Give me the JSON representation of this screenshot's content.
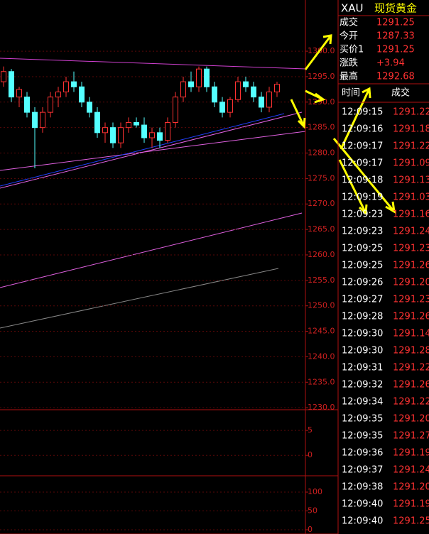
{
  "chart_data": [
    {
      "type": "candlestick",
      "open": [
        1294,
        1296,
        1291,
        1291,
        1288,
        1285,
        1288,
        1291,
        1292,
        1294,
        1293,
        1290,
        1288,
        1284,
        1285,
        1282,
        1285,
        1286,
        1285.5,
        1283,
        1284,
        1282.5,
        1286,
        1291,
        1294,
        1293,
        1296.5,
        1293,
        1290,
        1288,
        1290.5,
        1294,
        1293,
        1291,
        1289,
        1292
      ],
      "high": [
        1297,
        1296.5,
        1293,
        1292,
        1289,
        1289,
        1292,
        1293,
        1295,
        1296,
        1294,
        1291,
        1289,
        1286,
        1286,
        1286,
        1287,
        1287,
        1287,
        1285,
        1285,
        1287,
        1292,
        1295,
        1296,
        1297,
        1297,
        1294,
        1291,
        1291,
        1295,
        1295,
        1294,
        1292,
        1293,
        1294
      ],
      "low": [
        1293,
        1290,
        1289,
        1287,
        1277,
        1284,
        1287,
        1289,
        1291,
        1292,
        1289,
        1287,
        1283,
        1282,
        1281,
        1281,
        1284,
        1285,
        1282,
        1281,
        1281,
        1282,
        1285,
        1290,
        1292,
        1292,
        1292,
        1289,
        1287,
        1287,
        1290,
        1292,
        1290,
        1288,
        1288,
        1291
      ],
      "close": [
        1296,
        1291,
        1292.5,
        1288,
        1285,
        1288,
        1291,
        1292,
        1294,
        1293,
        1290,
        1288,
        1284,
        1285,
        1282,
        1285,
        1286,
        1285.5,
        1283,
        1284,
        1282.5,
        1286,
        1291,
        1294,
        1293,
        1296.5,
        1293,
        1290,
        1288,
        1290.5,
        1294,
        1293,
        1291,
        1289,
        1292,
        1293.5
      ],
      "up_color": "#ff3232",
      "down_color": "#54ffff",
      "ylim": [
        1229.6,
        1310.05
      ],
      "yticks": [
        {
          "value": 1300,
          "label": "1300.0"
        },
        {
          "value": 1295,
          "label": "1295.0"
        },
        {
          "value": 1290,
          "label": "1290.0"
        },
        {
          "value": 1285,
          "label": "1285.0"
        },
        {
          "value": 1280,
          "label": "1280.0"
        },
        {
          "value": 1275,
          "label": "1275.0"
        },
        {
          "value": 1270,
          "label": "1270.0"
        },
        {
          "value": 1265,
          "label": "1265.0"
        },
        {
          "value": 1260,
          "label": "1260.0"
        },
        {
          "value": 1255,
          "label": "1255.0"
        },
        {
          "value": 1250,
          "label": "1250.0"
        },
        {
          "value": 1245,
          "label": "1245.0"
        },
        {
          "value": 1240,
          "label": "1240.0"
        },
        {
          "value": 1235,
          "label": "1235.0"
        },
        {
          "value": 1230,
          "label": "1230.0"
        }
      ],
      "grid": true
    },
    {
      "type": "macd",
      "ylim": [
        -4.1,
        7.3
      ],
      "yticks": [
        5,
        0
      ],
      "grid": true
    },
    {
      "type": "kdj",
      "ylim": [
        -11.3,
        124.5
      ],
      "yticks": [
        100,
        50,
        0
      ],
      "grid": true
    }
  ],
  "header": {
    "symbol": "XAU",
    "name": "现货黄金"
  },
  "quote": [
    [
      "成交",
      "1291.25"
    ],
    [
      "今开",
      "1287.33"
    ],
    [
      "买价1",
      "1291.25"
    ],
    [
      "涨跌",
      "+3.94"
    ],
    [
      "最高",
      "1292.68"
    ]
  ],
  "trades_header": [
    "时间",
    "成交"
  ],
  "trades": [
    [
      "12:09:15",
      "1291.22"
    ],
    [
      "12:09:16",
      "1291.18"
    ],
    [
      "12:09:17",
      "1291.22"
    ],
    [
      "12:09:17",
      "1291.09"
    ],
    [
      "12:09:18",
      "1291.13"
    ],
    [
      "12:09:19",
      "1291.03"
    ],
    [
      "12:09:23",
      "1291.16"
    ],
    [
      "12:09:23",
      "1291.24"
    ],
    [
      "12:09:25",
      "1291.23"
    ],
    [
      "12:09:25",
      "1291.26"
    ],
    [
      "12:09:26",
      "1291.20"
    ],
    [
      "12:09:27",
      "1291.23"
    ],
    [
      "12:09:28",
      "1291.26"
    ],
    [
      "12:09:30",
      "1291.14"
    ],
    [
      "12:09:30",
      "1291.28"
    ],
    [
      "12:09:31",
      "1291.22"
    ],
    [
      "12:09:32",
      "1291.26"
    ],
    [
      "12:09:34",
      "1291.22"
    ],
    [
      "12:09:35",
      "1291.20"
    ],
    [
      "12:09:35",
      "1291.27"
    ],
    [
      "12:09:36",
      "1291.19"
    ],
    [
      "12:09:37",
      "1291.24"
    ],
    [
      "12:09:38",
      "1291.20"
    ],
    [
      "12:09:40",
      "1291.19"
    ],
    [
      "12:09:40",
      "1291.25"
    ]
  ]
}
